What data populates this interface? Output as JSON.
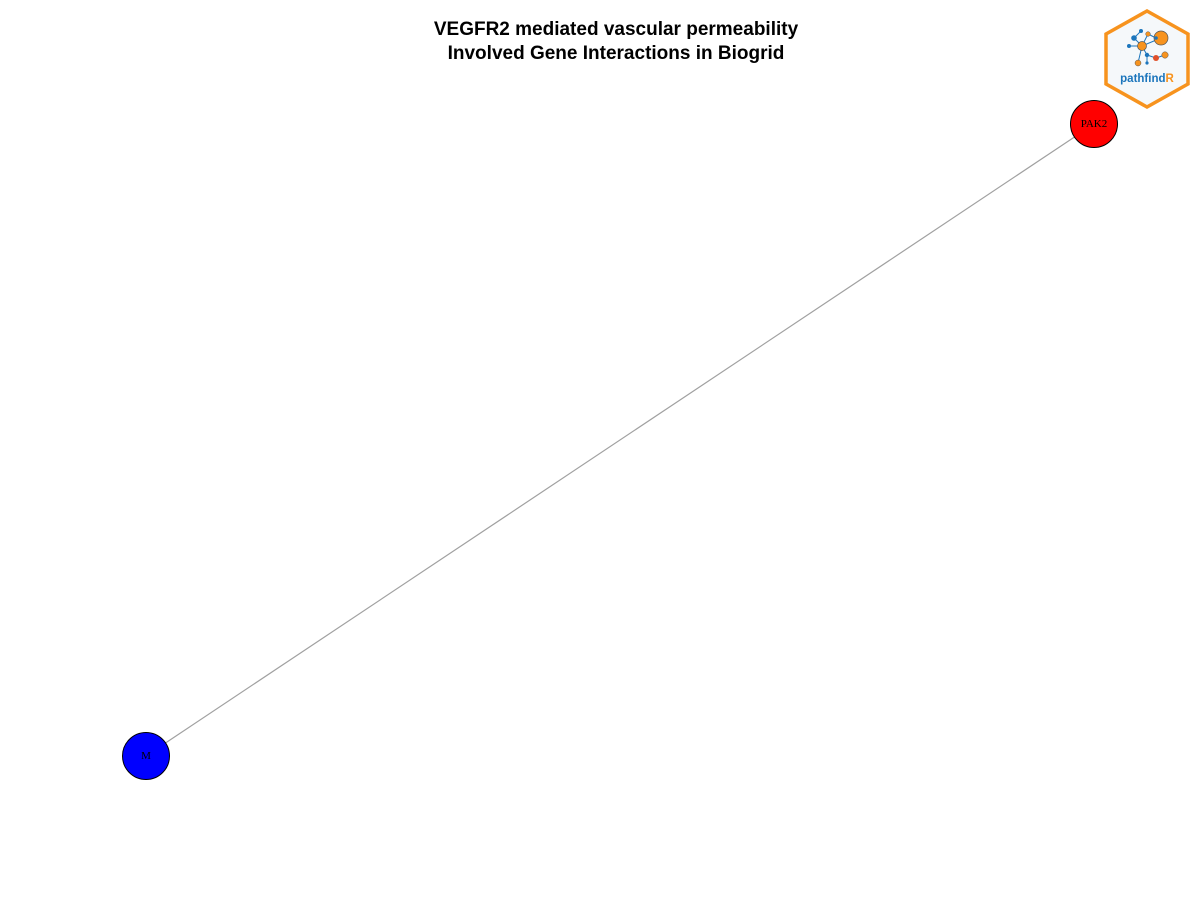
{
  "title": {
    "line1": "VEGFR2 mediated vascular permeability",
    "line2": "Involved Gene Interactions in Biogrid"
  },
  "network": {
    "nodes": [
      {
        "id": "PAK2",
        "label": "PAK2",
        "color": "#ff0000"
      },
      {
        "id": "M",
        "label": "M",
        "color": "#0000ff"
      }
    ],
    "edges": [
      {
        "from": "PAK2",
        "to": "M",
        "color": "#a0a0a0"
      }
    ]
  },
  "logo": {
    "name": "pathfindR-logo",
    "text_main": "pathfind",
    "text_accent": "R",
    "border_color": "#f7931e",
    "text_color": "#1b75bc"
  }
}
